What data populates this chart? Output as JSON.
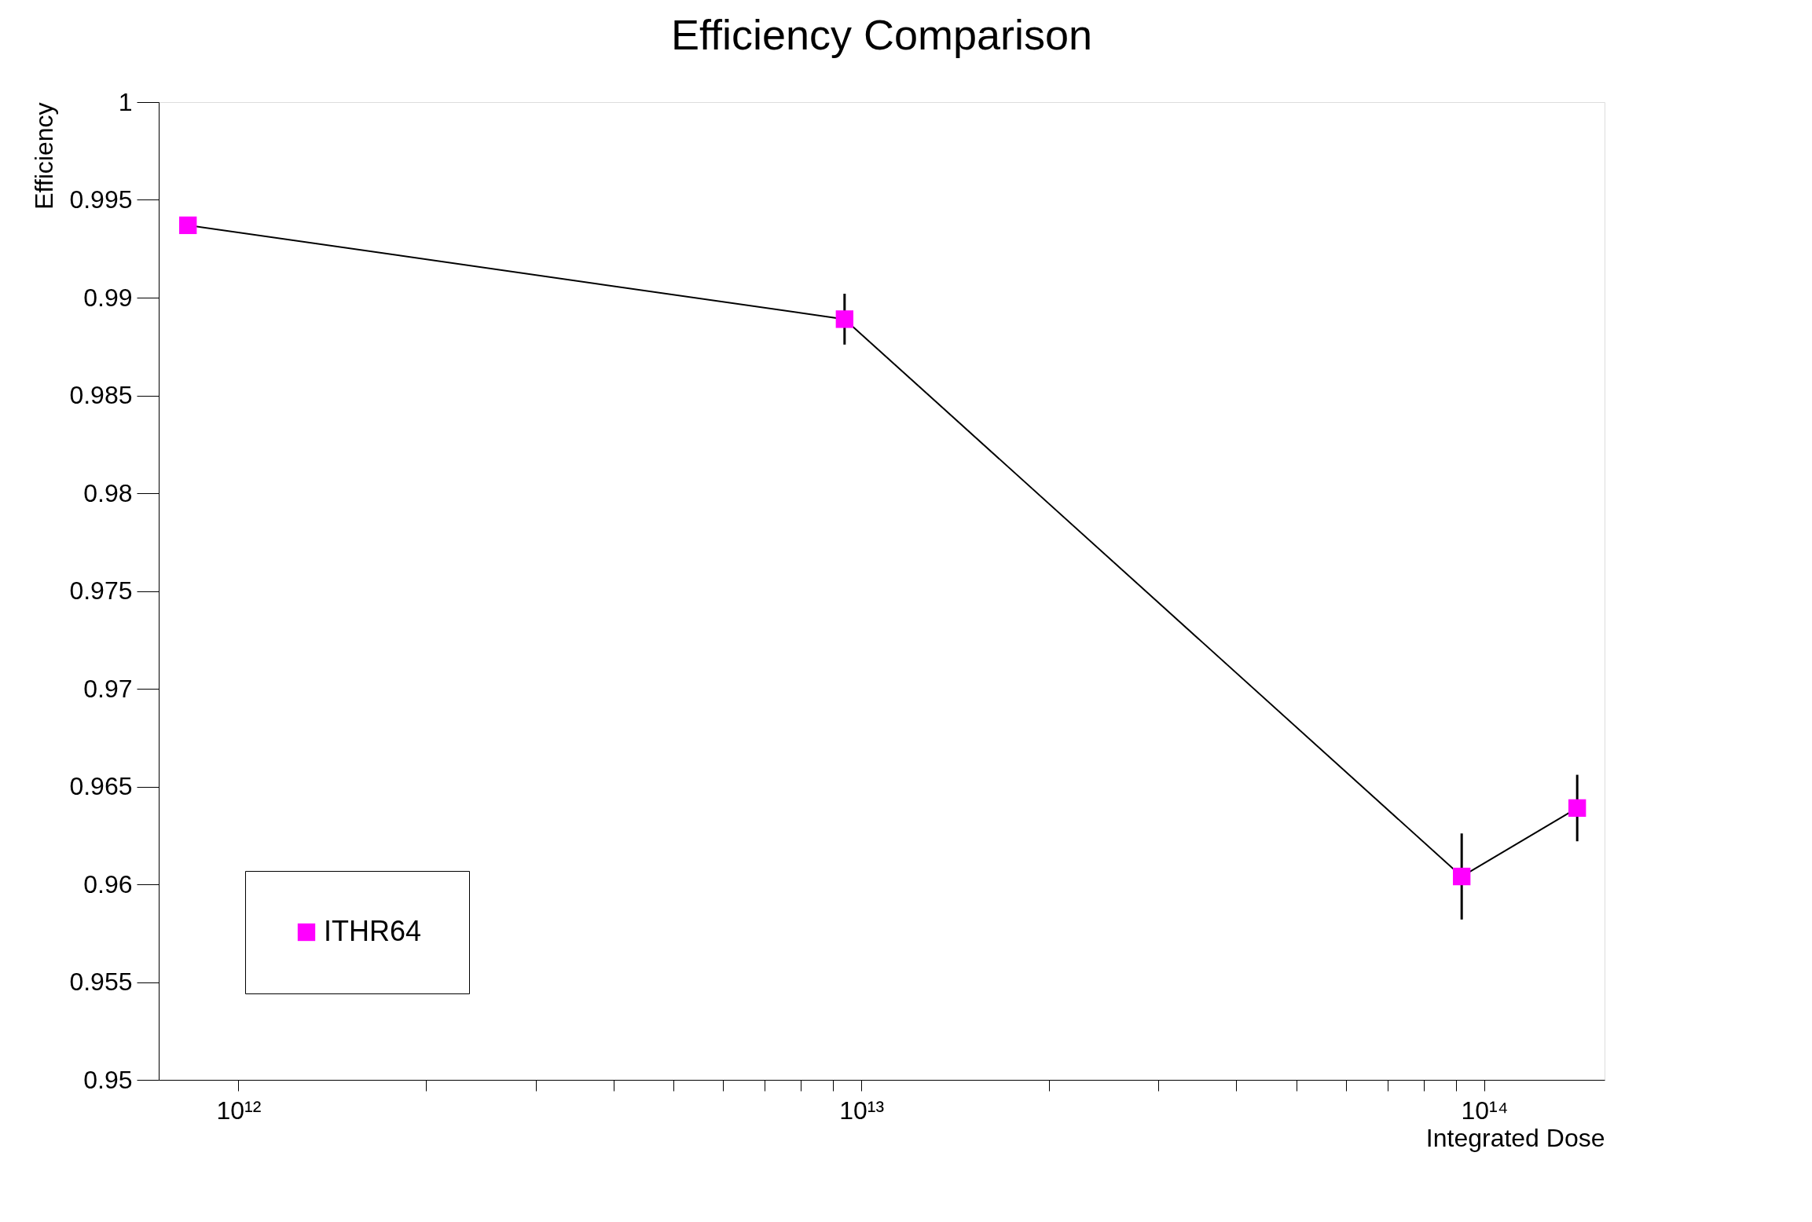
{
  "chart_data": {
    "type": "line",
    "title": "Efficiency Comparison",
    "xlabel": "Integrated Dose",
    "ylabel": "Efficiency",
    "x": [
      830000000000.0,
      9400000000000.0,
      92000000000000.0,
      141000000000000.0
    ],
    "series": [
      {
        "name": "ITHR64",
        "color": "#ff00ff",
        "values": [
          0.9937,
          0.9889,
          0.9604,
          0.9639
        ],
        "errors": [
          null,
          0.0013,
          0.0022,
          0.0017
        ]
      }
    ],
    "log": "x",
    "xlim": [
      745000000000.0,
      156000000000000.0
    ],
    "ylim": [
      0.95,
      1
    ],
    "xticks": [
      {
        "value": 1000000000000.0,
        "label": "10¹²"
      },
      {
        "value": 2000000000000.0,
        "label": null
      },
      {
        "value": 3000000000000.0,
        "label": null
      },
      {
        "value": 4000000000000.0,
        "label": null
      },
      {
        "value": 5000000000000.0,
        "label": null
      },
      {
        "value": 6000000000000.0,
        "label": null
      },
      {
        "value": 7000000000000.0,
        "label": null
      },
      {
        "value": 8000000000000.0,
        "label": null
      },
      {
        "value": 9000000000000.0,
        "label": null
      },
      {
        "value": 10000000000000.0,
        "label": "10¹³"
      },
      {
        "value": 20000000000000.0,
        "label": null
      },
      {
        "value": 30000000000000.0,
        "label": null
      },
      {
        "value": 40000000000000.0,
        "label": null
      },
      {
        "value": 50000000000000.0,
        "label": null
      },
      {
        "value": 60000000000000.0,
        "label": null
      },
      {
        "value": 70000000000000.0,
        "label": null
      },
      {
        "value": 80000000000000.0,
        "label": null
      },
      {
        "value": 90000000000000.0,
        "label": null
      },
      {
        "value": 100000000000000.0,
        "label": "10¹⁴"
      }
    ],
    "yticks": [
      0.95,
      0.955,
      0.96,
      0.965,
      0.97,
      0.975,
      0.98,
      0.985,
      0.99,
      0.995,
      1
    ],
    "grid": false,
    "legend": "bottom left",
    "marker": "square",
    "line_style": "solid"
  }
}
